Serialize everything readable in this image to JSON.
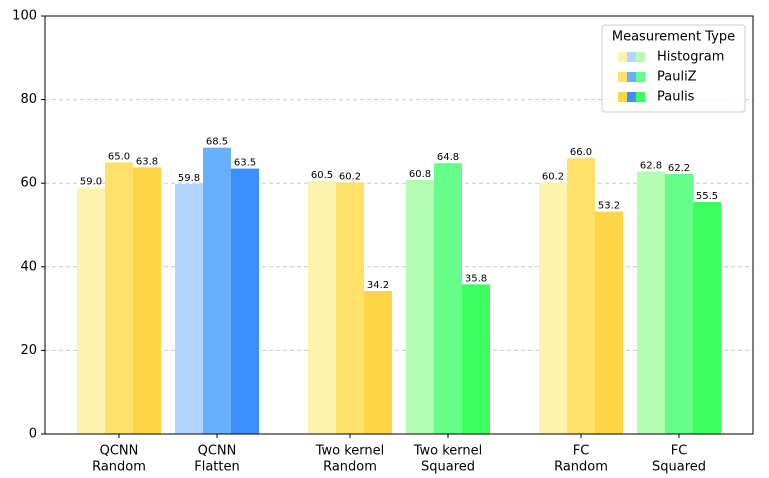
{
  "chart_data": {
    "type": "bar",
    "categories": [
      [
        "QCNN",
        "Random"
      ],
      [
        "QCNN",
        "Flatten"
      ],
      [
        "Two kernel",
        "Random"
      ],
      [
        "Two kernel",
        "Squared"
      ],
      [
        "FC",
        "Random"
      ],
      [
        "FC",
        "Squared"
      ]
    ],
    "series": [
      {
        "name": "Histogram",
        "colors": [
          "#fef3ad",
          "#b3d4fe",
          "#fef3ad",
          "#b3feb3",
          "#fef3ad",
          "#b3feb3"
        ],
        "values": [
          59.0,
          59.8,
          60.5,
          60.8,
          60.2,
          62.8
        ],
        "value_labels": [
          "59.0",
          "59.8",
          "60.5",
          "60.8",
          "60.2",
          "62.8"
        ]
      },
      {
        "name": "PauliZ",
        "colors": [
          "#fee06a",
          "#66b0fe",
          "#fee06a",
          "#66fe8a",
          "#fee06a",
          "#66fe8a"
        ],
        "values": [
          65.0,
          68.5,
          60.2,
          64.8,
          66.0,
          62.2
        ],
        "value_labels": [
          "65.0",
          "68.5",
          "60.2",
          "64.8",
          "66.0",
          "62.2"
        ]
      },
      {
        "name": "Paulis",
        "colors": [
          "#fed545",
          "#3d8ffe",
          "#fed545",
          "#3dfe5f",
          "#fed545",
          "#3dfe5f"
        ],
        "values": [
          63.8,
          63.5,
          34.2,
          35.8,
          53.2,
          55.5
        ],
        "value_labels": [
          "63.8",
          "63.5",
          "34.2",
          "35.8",
          "53.2",
          "55.5"
        ]
      }
    ],
    "legend_title": "Measurement Type",
    "legend_position": "upper right",
    "ylim": [
      0,
      100
    ],
    "yticks": [
      0,
      20,
      40,
      60,
      80,
      100
    ],
    "grid": true
  }
}
